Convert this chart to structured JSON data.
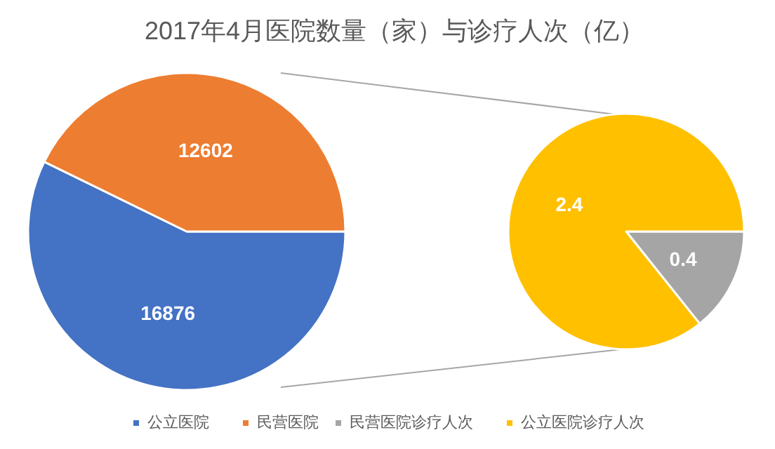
{
  "chart_data": [
    {
      "type": "pie",
      "title": "2017年4月医院数量（家）与诊疗人次（亿）",
      "categories": [
        "公立医院",
        "民营医院"
      ],
      "values": [
        16876,
        12602
      ],
      "colors": [
        "#4472c4",
        "#ed7d31"
      ],
      "data_labels": true,
      "legend": "bottom"
    },
    {
      "type": "pie",
      "categories": [
        "民营医院诊疗人次",
        "公立医院诊疗人次"
      ],
      "values": [
        0.4,
        2.4
      ],
      "colors": [
        "#a5a5a5",
        "#ffc000"
      ],
      "data_labels": true,
      "legend": "bottom"
    }
  ]
}
